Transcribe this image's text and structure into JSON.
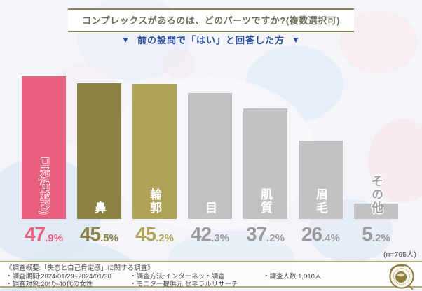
{
  "header": {
    "title": "コンプレックスがあるのは、どのパーツですか?(複数選択可)",
    "subtitle": "前の設問で「はい」と回答した方",
    "triangle_icon": "▼"
  },
  "chart_data": {
    "type": "bar",
    "title": "コンプレックスがあるのは、どのパーツですか?(複数選択可)",
    "subtitle": "前の設問で「はい」と回答した方",
    "categories": [
      "口元(歯並び)",
      "鼻",
      "輪郭",
      "目",
      "肌質",
      "眉毛",
      "その他"
    ],
    "values": [
      47.9,
      45.5,
      45.2,
      42.3,
      37.2,
      26.4,
      5.2
    ],
    "unit": "%",
    "bar_colors": [
      "#e85f80",
      "#8b8243",
      "#b0a356",
      "#c2c2c5",
      "#c2c2c5",
      "#c2c2c5",
      "#c2c2c5"
    ],
    "value_colors": [
      "#e85f80",
      "#8b8243",
      "#b0a356",
      "#9b9b9e",
      "#9b9b9e",
      "#9b9b9e",
      "#9b9b9e"
    ],
    "label_styles": [
      "outline",
      "solid",
      "solid",
      "solid",
      "solid",
      "solid",
      "gray-outline"
    ],
    "ylim": [
      0,
      50
    ],
    "grid": false,
    "legend": "none",
    "n_note": "(n=795人)"
  },
  "footer": {
    "col1": [
      "《調査概要:「失恋と自己肯定感」に関する調査》",
      "・調査期間:2024/01/29~2024/01/30",
      "・調査対象:20代~40代の女性"
    ],
    "col2": [
      "・調査方法:インターネット調査",
      "・モニター提供元:ゼネラルリサーチ"
    ],
    "col3": [
      "・調査人数:1,010人"
    ]
  },
  "colors": {
    "background": "#f3f5fa",
    "accent_gold": "#b3a87a",
    "title_border": "#8a8158",
    "subtitle_blue": "#2a4f9e",
    "footer_text": "#4a4a4a"
  }
}
